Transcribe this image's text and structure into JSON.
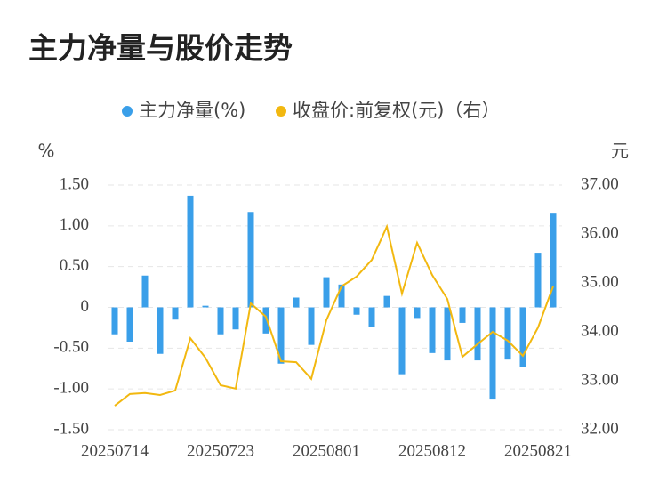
{
  "chart_data": {
    "type": "bar-line",
    "title": "主力净量与股价走势",
    "y_label": "%",
    "y2_label": "元",
    "categories": [
      "20250714",
      null,
      null,
      null,
      null,
      null,
      null,
      "20250723",
      null,
      null,
      null,
      null,
      null,
      null,
      "20250801",
      null,
      null,
      null,
      null,
      null,
      null,
      "20250812",
      null,
      null,
      null,
      null,
      null,
      null,
      "20250821",
      null
    ],
    "series": [
      {
        "name": "主力净量(%)",
        "type": "bar",
        "color": "#3a9fe9",
        "values": [
          -0.33,
          -0.42,
          0.39,
          -0.57,
          -0.15,
          1.37,
          0.02,
          -0.33,
          -0.27,
          1.17,
          -0.32,
          -0.69,
          0.12,
          -0.46,
          0.37,
          0.28,
          -0.09,
          -0.24,
          0.14,
          -0.82,
          -0.13,
          -0.56,
          -0.65,
          -0.19,
          -0.65,
          -1.13,
          -0.64,
          -0.73,
          0.67,
          1.16
        ]
      },
      {
        "name": "收盘价:前复权(元)（右）",
        "type": "line",
        "axis": "y2",
        "color": "#f2b810",
        "values": [
          32.49,
          32.73,
          32.75,
          32.71,
          32.8,
          33.87,
          33.47,
          32.91,
          32.84,
          34.58,
          34.31,
          33.4,
          33.38,
          33.04,
          34.24,
          34.93,
          35.13,
          35.47,
          36.15,
          34.78,
          35.82,
          35.16,
          34.67,
          33.49,
          33.75,
          34.0,
          33.82,
          33.51,
          34.09,
          34.93
        ]
      }
    ],
    "ylim": [
      -1.5,
      1.5
    ],
    "yticks": [
      {
        "value": -1.5,
        "label": "-1.50"
      },
      {
        "value": -1,
        "label": "-1.00"
      },
      {
        "value": -0.5,
        "label": "-0.50"
      },
      0,
      {
        "value": 0.5,
        "label": "0.50"
      },
      {
        "value": 1,
        "label": "1.00"
      },
      {
        "value": 1.5,
        "label": "1.50"
      }
    ],
    "y2lim": [
      32,
      37
    ],
    "y2ticks": [
      {
        "value": 32,
        "label": "32.00"
      },
      {
        "value": 33,
        "label": "33.00"
      },
      {
        "value": 34,
        "label": "34.00"
      },
      {
        "value": 35,
        "label": "35.00"
      },
      {
        "value": 36,
        "label": "36.00"
      },
      {
        "value": 37,
        "label": "37.00"
      }
    ],
    "grid": true,
    "legend": "top"
  }
}
